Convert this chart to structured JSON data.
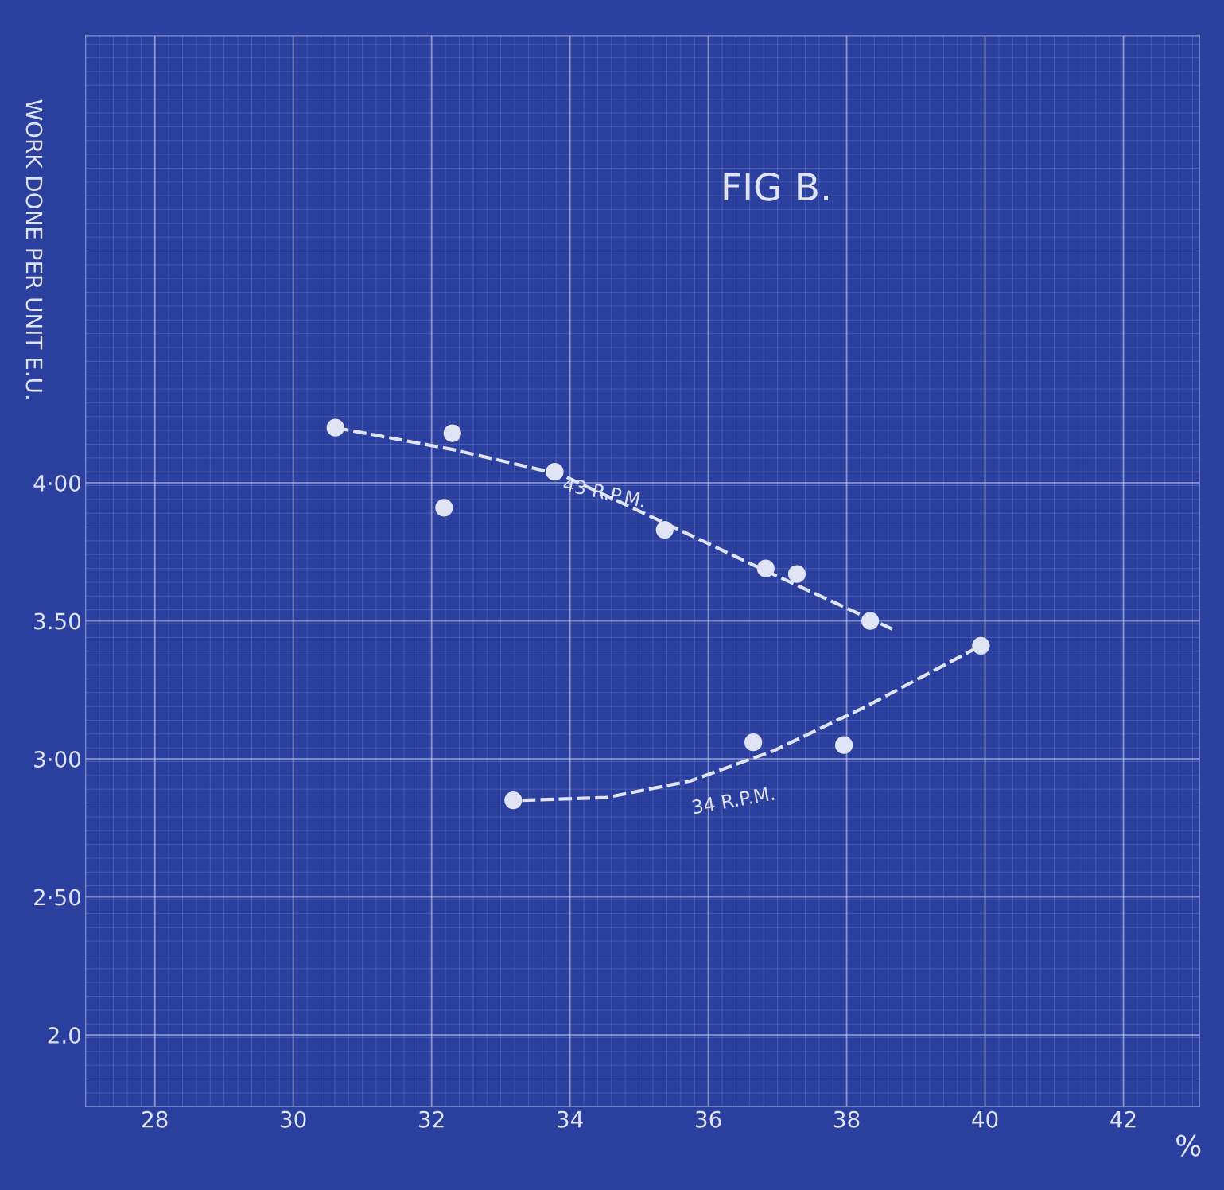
{
  "chart_data": {
    "type": "scatter",
    "title": "FIG B.",
    "xlabel": "%",
    "ylabel": "WORK DONE PER UNIT E.U.",
    "xlim": [
      27,
      43.1
    ],
    "ylim": [
      1.74,
      5.62
    ],
    "xticks": [
      28,
      30,
      32,
      34,
      36,
      38,
      40,
      42
    ],
    "yticks": [
      {
        "value": 2.0,
        "label": "2.0"
      },
      {
        "value": 2.5,
        "label": "2·50"
      },
      {
        "value": 3.0,
        "label": "3·00"
      },
      {
        "value": 3.5,
        "label": "3.50"
      },
      {
        "value": 4.0,
        "label": "4·00"
      }
    ],
    "grid": true,
    "legend": false,
    "series": [
      {
        "marker": "circle",
        "color": "#dfe3f3",
        "x": [
          30.61,
          32.3,
          32.18,
          33.78,
          35.37,
          36.83,
          37.28,
          38.34
        ],
        "values": [
          4.2,
          4.18,
          3.91,
          4.04,
          3.83,
          3.69,
          3.67,
          3.5
        ]
      },
      {
        "type": "line",
        "name": "43 R.P.M.",
        "line_style": "dashed",
        "color": "#dfe3f3",
        "x": [
          30.61,
          32.32,
          33.87,
          35.41,
          36.84,
          38.66
        ],
        "values": [
          4.2,
          4.12,
          4.03,
          3.85,
          3.68,
          3.47
        ]
      },
      {
        "marker": "circle",
        "color": "#dfe3f3",
        "x": [
          33.18,
          36.65,
          37.96,
          39.94
        ],
        "values": [
          2.85,
          3.06,
          3.05,
          3.41
        ]
      },
      {
        "type": "line",
        "name": "34 R.P.M.",
        "line_style": "dashed",
        "color": "#dfe3f3",
        "x": [
          33.31,
          34.53,
          35.74,
          36.95,
          38.28,
          39.94
        ],
        "values": [
          2.85,
          2.86,
          2.92,
          3.03,
          3.19,
          3.41
        ]
      }
    ]
  }
}
